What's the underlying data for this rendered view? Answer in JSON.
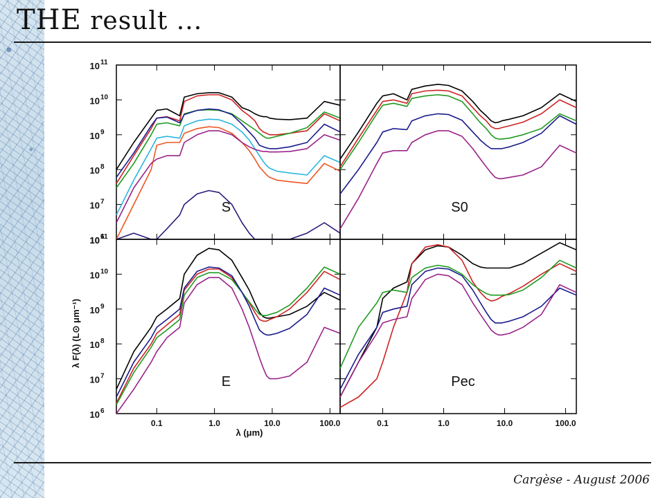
{
  "slide": {
    "title_lead": "THE",
    "title_rest": " result ...",
    "footer": "Cargèse - August 2006"
  },
  "chart_data": {
    "type": "line",
    "xscale": "log",
    "yscale": "log",
    "xlabel": "λ (μm)",
    "ylabel": "λ F(λ) (L⊙ μm⁻¹)",
    "xlim": [
      0.02,
      150
    ],
    "ylim": [
      1000000,
      100000000000
    ],
    "xticks": [
      0.1,
      1.0,
      10.0,
      100.0
    ],
    "xtick_labels": [
      "0.1",
      "1.0",
      "10.0",
      "100.0"
    ],
    "yticks": [
      1000000,
      10000000,
      100000000,
      1000000000,
      10000000000,
      100000000000
    ],
    "ytick_labels": [
      "10",
      "10",
      "10",
      "10",
      "10",
      "10"
    ],
    "ytick_exps": [
      "6",
      "7",
      "8",
      "9",
      "10",
      "11"
    ],
    "x": [
      0.02,
      0.04,
      0.08,
      0.1,
      0.15,
      0.25,
      0.3,
      0.5,
      0.8,
      1.2,
      2.0,
      3.0,
      4.0,
      5.0,
      6.0,
      7.0,
      8.0,
      9.0,
      12.0,
      20.0,
      40.0,
      80.0,
      150.0
    ],
    "panels": [
      {
        "label": "S",
        "series": [
          {
            "color": "#000000",
            "values": [
              100000000,
              600000000,
              3000000000,
              5000000000,
              5500000000,
              3500000000,
              12000000000,
              15000000000,
              16000000000,
              16000000000,
              12000000000,
              6000000000,
              5000000000,
              4000000000,
              3500000000,
              3300000000,
              3300000000,
              3000000000,
              2800000000,
              2700000000,
              3000000000,
              9000000000,
              7000000000
            ]
          },
          {
            "color": "#cc2222",
            "values": [
              40000000,
              250000000,
              1500000000,
              3000000000,
              3300000000,
              2500000000,
              9000000000,
              13000000000,
              14000000000,
              14000000000,
              10000000000,
              5000000000,
              3500000000,
              2500000000,
              1500000000,
              1200000000,
              1100000000,
              1000000000,
              1000000000,
              1100000000,
              1300000000,
              4000000000,
              2500000000
            ]
          },
          {
            "color": "#1f9a1f",
            "values": [
              30000000,
              150000000,
              1000000000,
              2000000000,
              2200000000,
              1800000000,
              4000000000,
              5000000000,
              5200000000,
              5000000000,
              4000000000,
              2500000000,
              1800000000,
              1400000000,
              1100000000,
              900000000,
              800000000,
              800000000,
              900000000,
              1100000000,
              1600000000,
              4500000000,
              3000000000
            ]
          },
          {
            "color": "#1a1a8c",
            "values": [
              60000000,
              300000000,
              1800000000,
              3000000000,
              3200000000,
              2200000000,
              3800000000,
              5000000000,
              5500000000,
              5200000000,
              3800000000,
              2000000000,
              1200000000,
              800000000,
              500000000,
              450000000,
              420000000,
              400000000,
              400000000,
              450000000,
              600000000,
              2000000000,
              1200000000
            ]
          },
          {
            "color": "#2ab5dd",
            "values": [
              5000000,
              50000000,
              400000000,
              800000000,
              900000000,
              800000000,
              1800000000,
              2500000000,
              2800000000,
              2700000000,
              2000000000,
              1200000000,
              700000000,
              400000000,
              250000000,
              170000000,
              130000000,
              110000000,
              90000000,
              80000000,
              70000000,
              250000000,
              160000000
            ]
          },
          {
            "color": "#ee5522",
            "values": [
              1000000,
              10000000,
              100000000,
              500000000,
              600000000,
              600000000,
              1100000000,
              1500000000,
              1700000000,
              1600000000,
              1100000000,
              600000000,
              350000000,
              200000000,
              120000000,
              90000000,
              70000000,
              60000000,
              50000000,
              45000000,
              40000000,
              150000000,
              90000000
            ]
          },
          {
            "color": "#992288",
            "values": [
              3000000,
              30000000,
              150000000,
              200000000,
              250000000,
              250000000,
              600000000,
              1000000000,
              1300000000,
              1300000000,
              1000000000,
              600000000,
              450000000,
              380000000,
              350000000,
              330000000,
              330000000,
              320000000,
              320000000,
              330000000,
              400000000,
              1000000000,
              700000000
            ]
          },
          {
            "color": "#2a1a7a",
            "values": [
              1000000,
              1500000,
              1000000,
              1000000,
              2000000,
              5000000,
              10000000,
              20000000,
              25000000,
              22000000,
              10000000,
              3000000,
              1500000,
              1000000,
              900000,
              900000,
              900000,
              900000,
              900000,
              900000,
              1500000,
              3000000,
              1500000
            ]
          }
        ]
      },
      {
        "label": "S0",
        "series": [
          {
            "color": "#000000",
            "values": [
              200000000,
              1200000000,
              8000000000,
              13000000000,
              15000000000,
              10000000000,
              20000000000,
              25000000000,
              28000000000,
              26000000000,
              18000000000,
              9000000000,
              5000000000,
              3500000000,
              2500000000,
              2200000000,
              2300000000,
              2500000000,
              2800000000,
              3500000000,
              6000000000,
              15000000000,
              9000000000
            ]
          },
          {
            "color": "#cc2222",
            "values": [
              120000000,
              800000000,
              5000000000,
              9000000000,
              10000000000,
              8000000000,
              15000000000,
              18000000000,
              19000000000,
              18000000000,
              13000000000,
              6000000000,
              3500000000,
              2500000000,
              1700000000,
              1500000000,
              1500000000,
              1600000000,
              1800000000,
              2300000000,
              4000000000,
              10000000000,
              6000000000
            ]
          },
          {
            "color": "#1f9a1f",
            "values": [
              100000000,
              600000000,
              4000000000,
              7000000000,
              8000000000,
              6500000000,
              11000000000,
              13000000000,
              14000000000,
              13000000000,
              9000000000,
              4000000000,
              2200000000,
              1500000000,
              1000000000,
              800000000,
              750000000,
              750000000,
              800000000,
              1000000000,
              1500000000,
              4000000000,
              2500000000
            ]
          },
          {
            "color": "#1a1a8c",
            "values": [
              20000000,
              100000000,
              600000000,
              1200000000,
              1500000000,
              1400000000,
              2500000000,
              3500000000,
              4000000000,
              3800000000,
              2600000000,
              1200000000,
              700000000,
              500000000,
              400000000,
              400000000,
              400000000,
              400000000,
              450000000,
              600000000,
              1100000000,
              3500000000,
              2000000000
            ]
          },
          {
            "color": "#992288",
            "values": [
              2000000,
              15000000,
              150000000,
              300000000,
              350000000,
              350000000,
              600000000,
              1000000000,
              1300000000,
              1300000000,
              900000000,
              400000000,
              200000000,
              120000000,
              80000000,
              60000000,
              55000000,
              55000000,
              60000000,
              70000000,
              120000000,
              500000000,
              300000000
            ]
          }
        ]
      },
      {
        "label": "E",
        "series": [
          {
            "color": "#000000",
            "values": [
              5000000,
              60000000,
              300000000,
              600000000,
              1000000000,
              2000000000,
              10000000000,
              35000000000,
              55000000000,
              50000000000,
              25000000000,
              8000000000,
              3500000000,
              1500000000,
              800000000,
              600000000,
              550000000,
              550000000,
              600000000,
              700000000,
              1200000000,
              3000000000,
              1800000000
            ]
          },
          {
            "color": "#cc2222",
            "values": [
              2000000,
              20000000,
              100000000,
              200000000,
              350000000,
              700000000,
              3500000000,
              10000000000,
              14000000000,
              14000000000,
              8000000000,
              3000000000,
              1500000000,
              800000000,
              500000000,
              450000000,
              450000000,
              500000000,
              600000000,
              1000000000,
              3000000000,
              12000000000,
              7000000000
            ]
          },
          {
            "color": "#1f9a1f",
            "values": [
              1800000,
              15000000,
              80000000,
              150000000,
              250000000,
              500000000,
              2500000000,
              8000000000,
              11000000000,
              11000000000,
              7000000000,
              3000000000,
              1600000000,
              1000000000,
              700000000,
              650000000,
              650000000,
              700000000,
              800000000,
              1300000000,
              4000000000,
              16000000000,
              10000000000
            ]
          },
          {
            "color": "#1a1a8c",
            "values": [
              3000000,
              30000000,
              150000000,
              300000000,
              500000000,
              1000000000,
              4000000000,
              12000000000,
              16000000000,
              15000000000,
              9000000000,
              3000000000,
              1200000000,
              500000000,
              250000000,
              200000000,
              180000000,
              180000000,
              200000000,
              280000000,
              700000000,
              4000000000,
              2500000000
            ]
          },
          {
            "color": "#992288",
            "values": [
              1000000,
              5000000,
              30000000,
              60000000,
              150000000,
              300000000,
              1500000000,
              5000000000,
              8000000000,
              8000000000,
              4000000000,
              1000000000,
              300000000,
              100000000,
              40000000,
              20000000,
              12000000,
              10000000,
              10000000,
              12000000,
              30000000,
              300000000,
              200000000
            ]
          }
        ]
      },
      {
        "label": "Pec",
        "series": [
          {
            "color": "#000000",
            "values": [
              3000000,
              30000000,
              300000000,
              2000000000,
              4000000000,
              6000000000,
              20000000000,
              50000000000,
              65000000000,
              60000000000,
              35000000000,
              20000000000,
              16000000000,
              15000000000,
              15000000000,
              15000000000,
              15000000000,
              15000000000,
              15000000000,
              20000000000,
              40000000000,
              80000000000,
              50000000000
            ]
          },
          {
            "color": "#cc2222",
            "values": [
              1500000,
              3000000,
              10000000,
              30000000,
              300000000,
              3000000000,
              20000000000,
              60000000000,
              70000000000,
              60000000000,
              25000000000,
              6000000000,
              3000000000,
              2000000000,
              1700000000,
              1800000000,
              2000000000,
              2300000000,
              2800000000,
              4500000000,
              10000000000,
              20000000000,
              12000000000
            ]
          },
          {
            "color": "#1f9a1f",
            "values": [
              20000000,
              300000000,
              1500000000,
              3000000000,
              3500000000,
              3000000000,
              8000000000,
              15000000000,
              18000000000,
              16000000000,
              10000000000,
              5000000000,
              3500000000,
              2800000000,
              2500000000,
              2500000000,
              2500000000,
              2500000000,
              2600000000,
              3500000000,
              8000000000,
              25000000000,
              15000000000
            ]
          },
          {
            "color": "#1a1a8c",
            "values": [
              5000000,
              50000000,
              300000000,
              800000000,
              1000000000,
              1200000000,
              5000000000,
              12000000000,
              15000000000,
              14000000000,
              9000000000,
              3500000000,
              1500000000,
              800000000,
              500000000,
              400000000,
              400000000,
              400000000,
              450000000,
              600000000,
              1200000000,
              4000000000,
              2500000000
            ]
          },
          {
            "color": "#992288",
            "values": [
              3000000,
              30000000,
              200000000,
              400000000,
              500000000,
              600000000,
              2000000000,
              7000000000,
              10000000000,
              9000000000,
              5000000000,
              1500000000,
              700000000,
              400000000,
              250000000,
              200000000,
              180000000,
              180000000,
              200000000,
              300000000,
              700000000,
              5000000000,
              3000000000
            ]
          }
        ]
      }
    ]
  }
}
